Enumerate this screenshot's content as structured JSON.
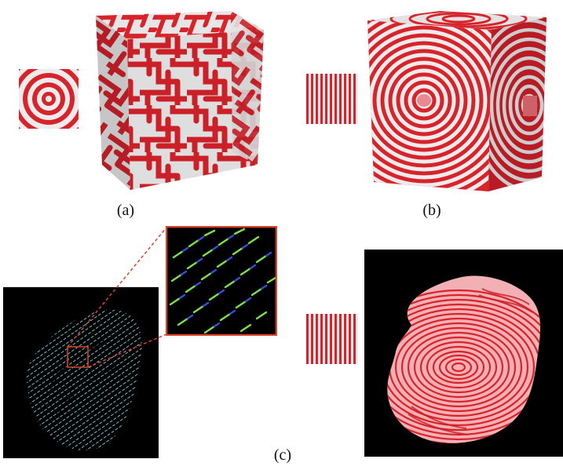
{
  "figure": {
    "panels": [
      {
        "id": "a",
        "caption": "(a)"
      },
      {
        "id": "b",
        "caption": "(b)"
      },
      {
        "id": "c",
        "caption": "(c)"
      }
    ],
    "colors": {
      "stripe_red": "#d9232b",
      "stripe_light": "#ececec",
      "background_dark": "#000000",
      "zoom_frame": "#d9452a",
      "vector_cyan": "#7fd4e8",
      "vector_green": "#7ee04a",
      "vector_blue": "#3a4fd0"
    },
    "icons": [
      "concentric-rings-exemplar",
      "vertical-stripes-exemplar"
    ]
  }
}
